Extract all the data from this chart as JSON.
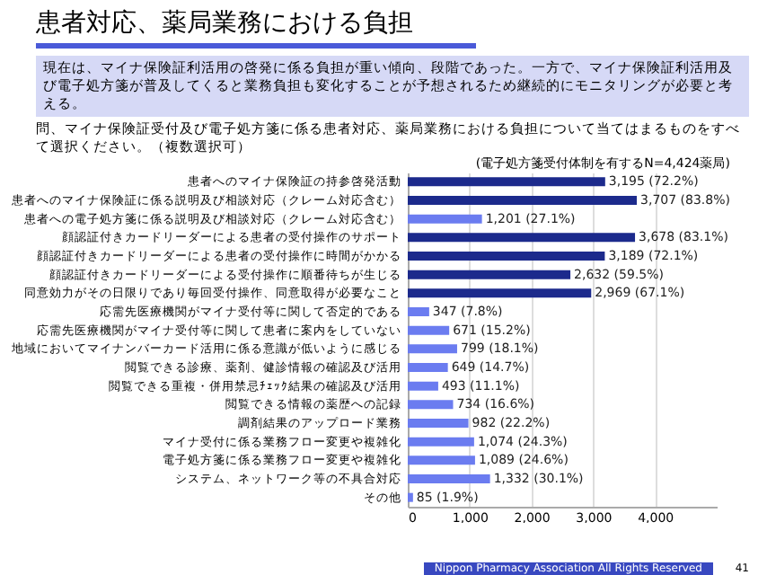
{
  "chart_data": {
    "type": "bar",
    "orientation": "horizontal",
    "title": "患者対応、薬局業務における負担",
    "subtitle": "(電子処方箋受付体制を有するN=4,424薬局)",
    "annotations": [
      "現在は、マイナ保険証利活用の啓発に係る負担が重い傾向、段階であった。一方で、マイナ保険証利活用及び電子処方箋が普及してくると業務負担も変化することが予想されるため継続的にモニタリングが必要と考える。",
      "問、マイナ保険証受付及び電子処方箋に係る患者対応、薬局業務における負担について当てはまるものをすべて選択ください。（複数選択可）",
      "Nippon Pharmacy Association All Rights Reserved",
      "41"
    ],
    "categories": [
      "患者へのマイナ保険証の持参啓発活動",
      "患者へのマイナ保険証に係る説明及び相談対応（クレーム対応含む）",
      "患者への電子処方箋に係る説明及び相談対応（クレーム対応含む）",
      "顔認証付きカードリーダーによる患者の受付操作のサポート",
      "顔認証付きカードリーダーによる患者の受付操作に時間がかかる",
      "顔認証付きカードリーダーによる受付操作に順番待ちが生じる",
      "同意効力がその日限りであり毎回受付操作、同意取得が必要なこと",
      "応需先医療機関がマイナ受付等に関して否定的である",
      "応需先医療機関がマイナ受付等に関して患者に案内をしていない",
      "地域においてマイナンバーカード活用に係る意識が低いように感じる",
      "閲覧できる診療、薬剤、健診情報の確認及び活用",
      "閲覧できる重複・併用禁忌ﾁｪｯｸ結果の確認及び活用",
      "閲覧できる情報の薬歴への記録",
      "調剤結果のアップロード業務",
      "マイナ受付に係る業務フロー変更や複雑化",
      "電子処方箋に係る業務フロー変更や複雑化",
      "システム、ネットワーク等の不具合対応",
      "その他"
    ],
    "values": [
      3195,
      3707,
      1201,
      3678,
      3189,
      2632,
      2969,
      347,
      671,
      799,
      649,
      493,
      734,
      982,
      1074,
      1089,
      1332,
      85
    ],
    "colors": [
      "#1c2a8c",
      "#1c2a8c",
      "#6b7cf0",
      "#1c2a8c",
      "#1c2a8c",
      "#1c2a8c",
      "#1c2a8c",
      "#6b7cf0",
      "#6b7cf0",
      "#6b7cf0",
      "#6b7cf0",
      "#6b7cf0",
      "#6b7cf0",
      "#6b7cf0",
      "#6b7cf0",
      "#6b7cf0",
      "#6b7cf0",
      "#6b7cf0"
    ],
    "value_labels": [
      "3,195 (72.2%)",
      "3,707 (83.8%)",
      "1,201 (27.1%)",
      "3,678 (83.1%)",
      "3,189 (72.1%)",
      "2,632 (59.5%)",
      "2,969 (67.1%)",
      "347 (7.8%)",
      "671 (15.2%)",
      "799 (18.1%)",
      "649 (14.7%)",
      "493 (11.1%)",
      "734 (16.6%)",
      "982 (22.2%)",
      "1,074 (24.3%)",
      "1,089 (24.6%)",
      "1,332 (30.1%)",
      "85 (1.9%)"
    ],
    "xlim": [
      0,
      5000
    ],
    "xticks": [
      {
        "value": 0,
        "label": "0"
      },
      {
        "value": 1000,
        "label": "1,000"
      },
      {
        "value": 2000,
        "label": "2,000"
      },
      {
        "value": 3000,
        "label": "3,000"
      },
      {
        "value": 4000,
        "label": "4,000"
      }
    ],
    "grid": "x"
  }
}
